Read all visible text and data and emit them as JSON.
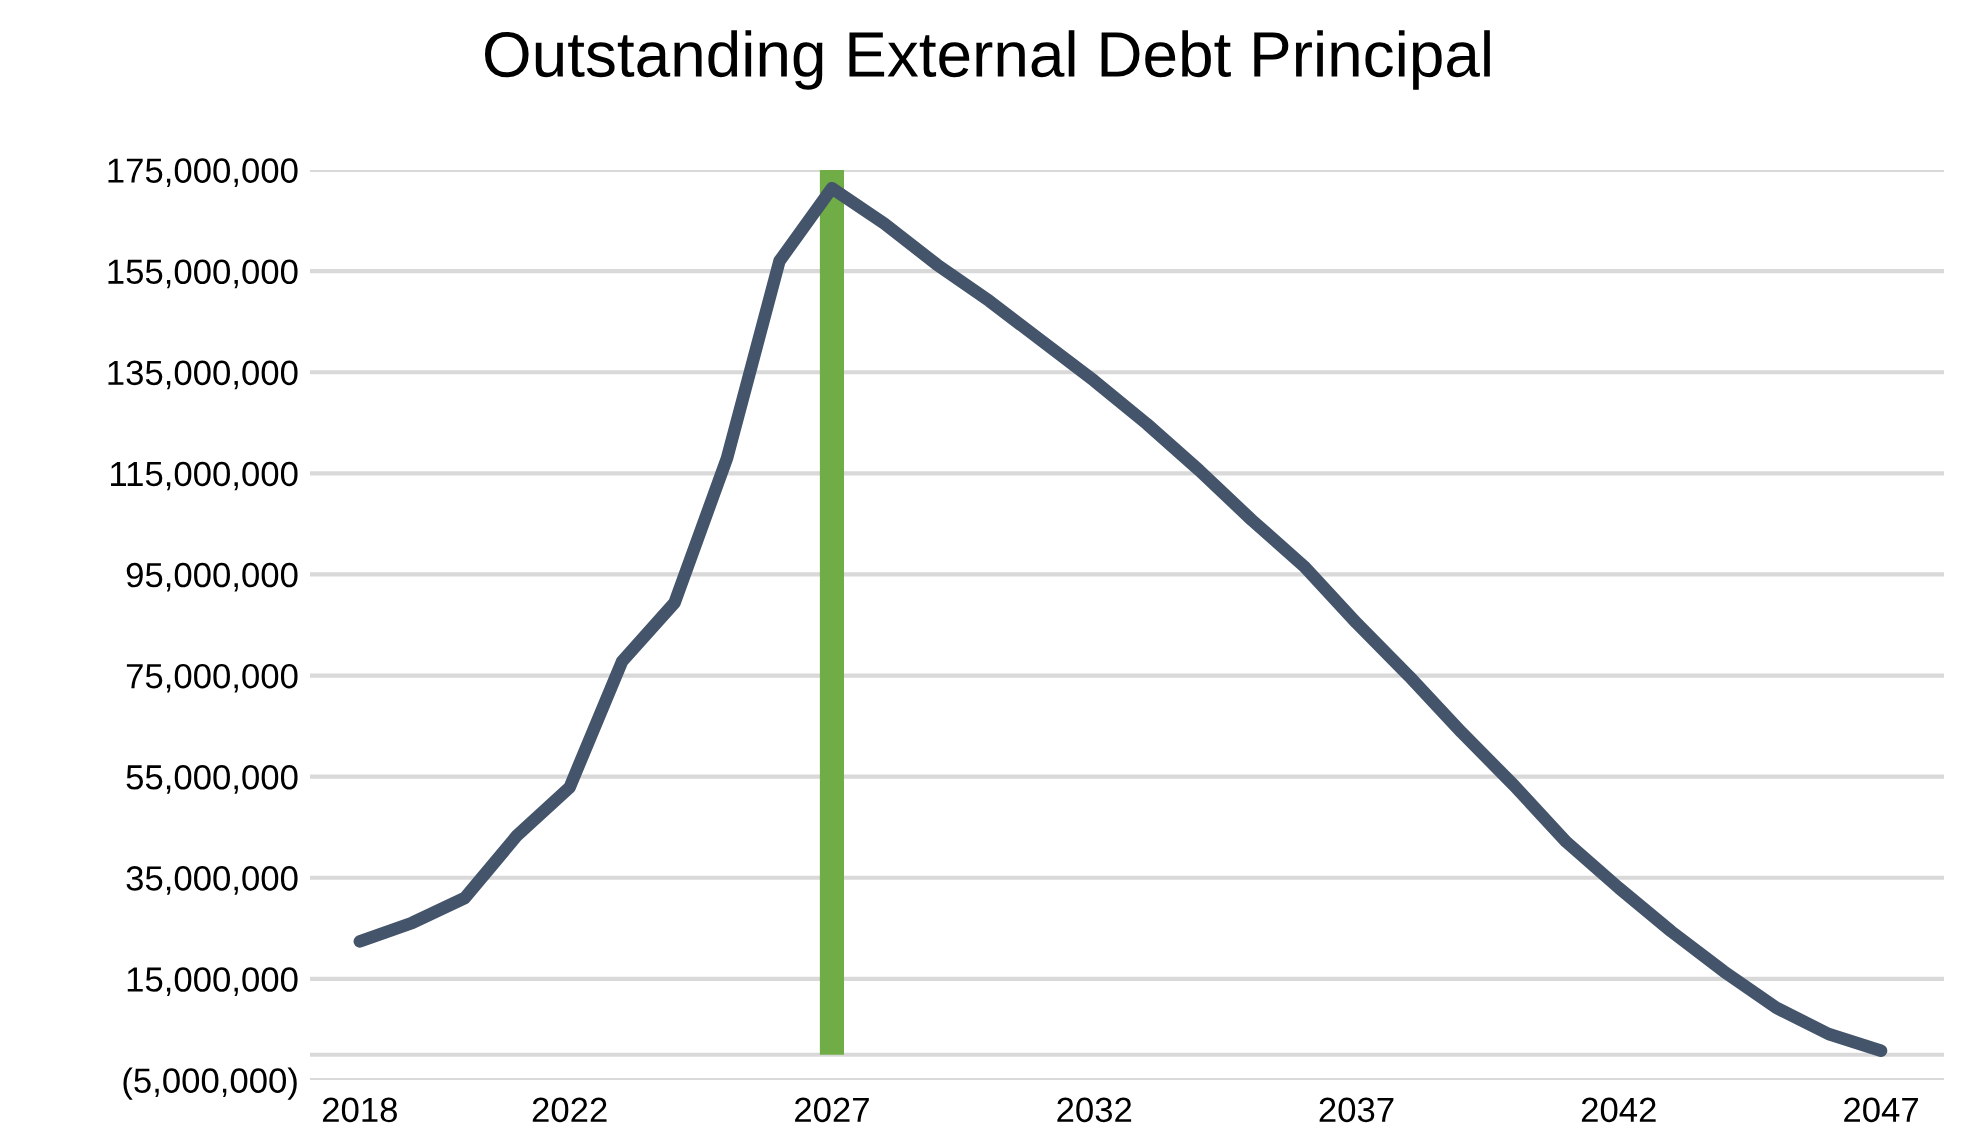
{
  "chart_data": {
    "type": "line",
    "title": "Outstanding External Debt Principal",
    "categories": [
      "2018",
      null,
      null,
      null,
      "2022",
      null,
      null,
      null,
      null,
      "2027",
      null,
      null,
      null,
      null,
      "2032",
      null,
      null,
      null,
      null,
      "2037",
      null,
      null,
      null,
      null,
      "2042",
      null,
      null,
      null,
      null,
      "2047"
    ],
    "series": [
      {
        "color": "#44546a",
        "values": [
          22400000,
          26100000,
          31000000,
          43400000,
          52900000,
          77800000,
          89400000,
          118000000,
          157000000,
          171400000,
          164400000,
          156300000,
          149100000,
          141200000,
          133300000,
          124800000,
          115600000,
          105800000,
          96600000,
          85400000,
          74900000,
          63800000,
          53300000,
          42100000,
          33000000,
          24400000,
          16500000,
          9300000,
          4100000,
          800000
        ]
      },
      {
        "type": "bar",
        "color": "#70ad47",
        "values": [
          null,
          null,
          null,
          null,
          null,
          null,
          null,
          null,
          null,
          175000000,
          null,
          null,
          null,
          null,
          null,
          null,
          null,
          null,
          null,
          null,
          null,
          null,
          null,
          null,
          null,
          null,
          null,
          null,
          null,
          null
        ]
      }
    ],
    "ylim": [
      -5000000,
      175000000
    ],
    "yticks": [
      {
        "value": -5000000,
        "label": "(5,000,000)"
      },
      {
        "value": 15000000,
        "label": "15,000,000"
      },
      {
        "value": 35000000,
        "label": "35,000,000"
      },
      {
        "value": 55000000,
        "label": "55,000,000"
      },
      {
        "value": 75000000,
        "label": "75,000,000"
      },
      {
        "value": 95000000,
        "label": "95,000,000"
      },
      {
        "value": 115000000,
        "label": "115,000,000"
      },
      {
        "value": 135000000,
        "label": "135,000,000"
      },
      {
        "value": 155000000,
        "label": "155,000,000"
      },
      {
        "value": 175000000,
        "label": "175,000,000"
      }
    ],
    "ref_lines": [
      {
        "axis": "y",
        "value": 0,
        "color": "#d9d9d9"
      }
    ],
    "grid": "y",
    "legend": false
  }
}
